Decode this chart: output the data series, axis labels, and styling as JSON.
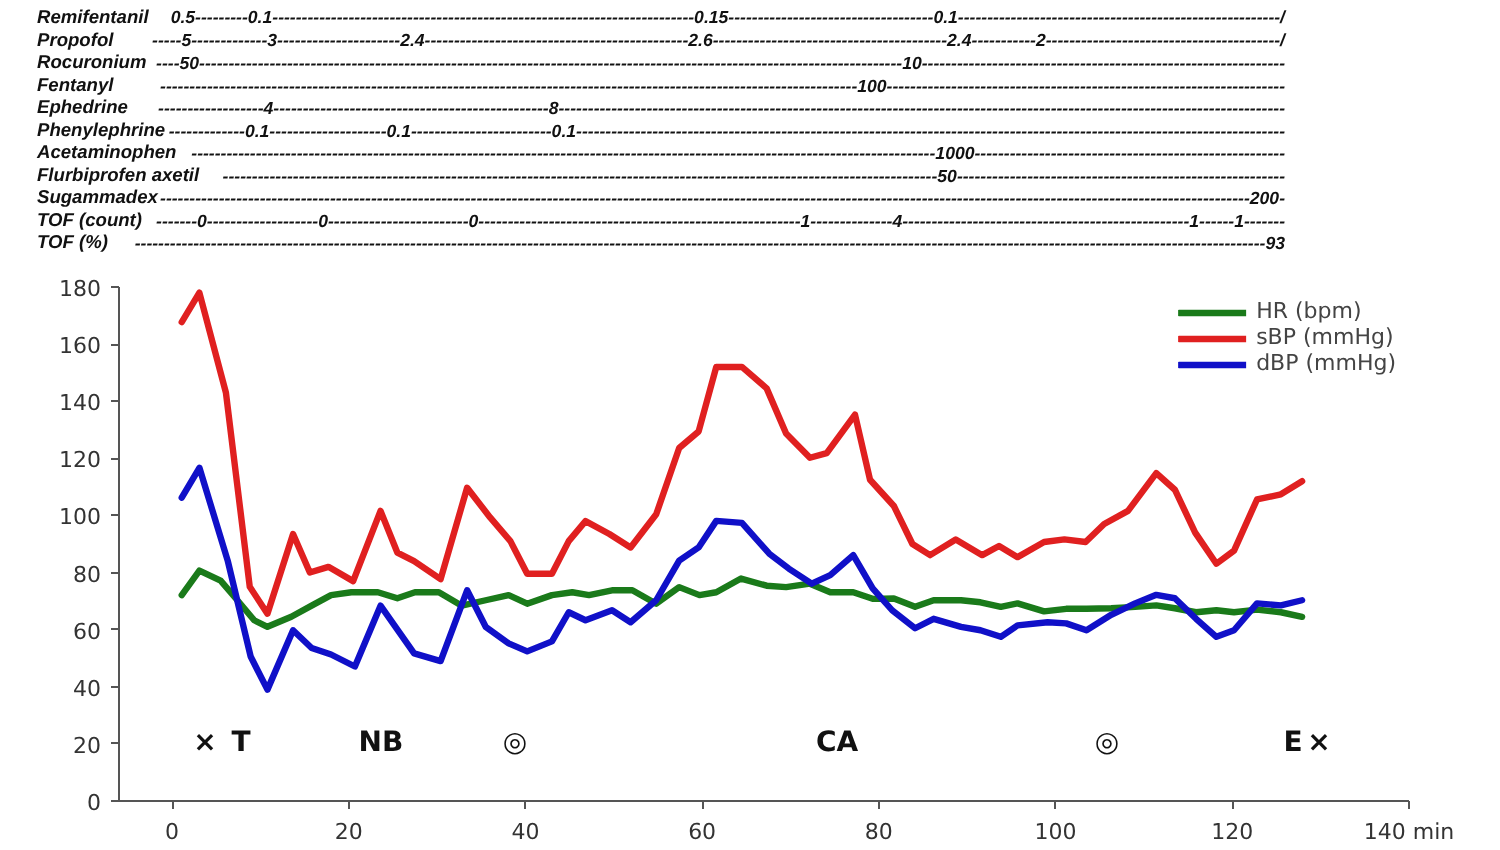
{
  "chart_data": [
    {
      "type": "other",
      "annotations": [
        "Remifentanil",
        "0.5---------0.1------------------------------------------------------------------------0.15-----------------------------------0.1-------------------------------------------------------/",
        "Propofol",
        "-----5-------------3---------------------2.4---------------------------------------------2.6----------------------------------------2.4-----------2----------------------------------------/",
        "Rocuronium",
        "----50------------------------------------------------------------------------------------------------------------------------10--------------------------------------------------------------",
        "Fentanyl",
        "-----------------------------------------------------------------------------------------------------------------------100--------------------------------------------------------------------",
        "Ephedrine",
        "------------------4-----------------------------------------------8----------------------------------------------------------------------------------------------------------------------------",
        "Phenylephrine",
        "-------------0.1--------------------0.1------------------------0.1-------------------------------------------------------------------------------------------------------------------------",
        "Acetaminophen",
        "-------------------------------------------------------------------------------------------------------------------------------1000-----------------------------------------------------",
        "Flurbiprofen axetil",
        "--------------------------------------------------------------------------------------------------------------------------50--------------------------------------------------------",
        "Sugammadex",
        "------------------------------------------------------------------------------------------------------------------------------------------------------------------------------------------200-",
        "TOF (count)",
        "-------0-------------------0------------------------0-------------------------------------------------------1--------------4-------------------------------------------------1------1-------",
        "TOF (%)",
        "-------------------------------------------------------------------------------------------------------------------------------------------------------------------------------------------------93"
      ]
    },
    {
      "type": "line",
      "xlim": [
        -6,
        140
      ],
      "ylim": [
        0,
        180
      ],
      "xticks": [
        0,
        20,
        40,
        60,
        80,
        100,
        120,
        {
          "value": 140,
          "label": "140 min"
        }
      ],
      "yticks": [
        0,
        20,
        40,
        60,
        80,
        100,
        120,
        140,
        160,
        180
      ],
      "legend": "top right",
      "series": [
        {
          "name": "HR (bpm)",
          "color": "#1a7a1a",
          "x": [
            1.1,
            3.1,
            5.5,
            7.4,
            9.3,
            10.8,
            13.5,
            15.8,
            18,
            20.3,
            23.3,
            25.5,
            27.5,
            30.2,
            32.8,
            35.5,
            38.1,
            40.2,
            43,
            45.3,
            47.2,
            49.8,
            52.1,
            54.8,
            57.4,
            59.7,
            61.6,
            64.4,
            67.3,
            69.5,
            72.2,
            74.5,
            77.1,
            79.3,
            81.7,
            84.1,
            86.2,
            89.3,
            91.5,
            93.8,
            95.7,
            98.7,
            101.2,
            103.5,
            106.3,
            109,
            111.4,
            113.5,
            115.9,
            118.2,
            120.2,
            122.8,
            125.5,
            127.9
          ],
          "values": [
            72.1,
            80.7,
            77.2,
            70.3,
            63.3,
            61,
            64.5,
            68.4,
            72.1,
            73.1,
            73.1,
            71,
            73.1,
            73.1,
            68.4,
            70.3,
            72.1,
            69.1,
            72.1,
            73.1,
            72.1,
            73.8,
            73.8,
            69.1,
            74.9,
            72.1,
            73.1,
            77.9,
            75.4,
            74.9,
            76.1,
            73.1,
            73.1,
            70.8,
            70.9,
            68,
            70.3,
            70.3,
            69.6,
            68,
            69.2,
            66.4,
            67.3,
            67.3,
            67.5,
            68,
            68.5,
            67.5,
            66.1,
            66.8,
            66.1,
            67,
            66.1,
            64.5
          ]
        },
        {
          "name": "sBP (mmHg)",
          "color": "#e02020",
          "x": [
            1.1,
            3.1,
            6.1,
            8.8,
            10.8,
            13.7,
            15.6,
            17.7,
            20.5,
            23.6,
            25.5,
            27.4,
            30.4,
            33.4,
            36,
            38.3,
            40.2,
            43,
            44.9,
            46.8,
            49.5,
            51.9,
            54.8,
            57.4,
            59.6,
            61.6,
            64.5,
            67.3,
            69.5,
            72.2,
            74.1,
            77.3,
            79,
            81.7,
            83.8,
            85.8,
            88.7,
            91.7,
            93.6,
            95.7,
            98.7,
            101,
            103.4,
            105.5,
            108.2,
            111.4,
            113.5,
            115.8,
            118.2,
            120.2,
            122.8,
            125.5,
            127.9
          ],
          "values": [
            167.7,
            178,
            143,
            75,
            65.6,
            93.5,
            80,
            82,
            77,
            101.6,
            87,
            84,
            77.7,
            109.7,
            99.3,
            91,
            79.6,
            79.6,
            91,
            98,
            93.5,
            88.8,
            100.4,
            123.6,
            129.4,
            152,
            152,
            144.5,
            128.7,
            120.2,
            121.8,
            135.3,
            112.5,
            103.3,
            90,
            86.1,
            91.6,
            86.1,
            89.3,
            85.4,
            90.7,
            91.6,
            90.7,
            97,
            101.6,
            114.8,
            109,
            94,
            83.1,
            87.7,
            105.6,
            107.4,
            112
          ]
        },
        {
          "name": "dBP (mmHg)",
          "color": "#1010c8",
          "x": [
            1.1,
            3.1,
            6.3,
            8.9,
            10.8,
            13.7,
            15.8,
            18,
            20.7,
            23.6,
            27.4,
            30.4,
            33.4,
            35.5,
            38.1,
            40.2,
            43,
            44.9,
            46.8,
            49.8,
            51.9,
            54.8,
            57.4,
            59.6,
            61.6,
            64.5,
            67.6,
            69.8,
            72.4,
            74.5,
            77.1,
            79.3,
            81.5,
            84.1,
            86.2,
            89.3,
            91.5,
            93.8,
            95.7,
            99.1,
            101.2,
            103.5,
            106.3,
            109,
            111.4,
            113.5,
            115.9,
            118.2,
            120.2,
            122.8,
            125.5,
            127.9
          ],
          "values": [
            106.2,
            116.7,
            84.2,
            50.6,
            39,
            59.8,
            53.6,
            51.3,
            47.1,
            68.4,
            51.7,
            49,
            73.8,
            61,
            55.2,
            52.4,
            55.9,
            66.1,
            63.3,
            66.8,
            62.6,
            70.3,
            84.2,
            88.8,
            98.1,
            97.4,
            86.6,
            81.4,
            76.1,
            79.1,
            86.1,
            74.5,
            66.8,
            60.5,
            63.8,
            61,
            59.8,
            57.5,
            61.5,
            62.6,
            62.2,
            59.8,
            65.2,
            69.2,
            72.2,
            71,
            63.8,
            57.5,
            59.8,
            69.2,
            68.5,
            70.3
          ]
        }
      ],
      "annotations": [
        "×",
        "T",
        "NB",
        "◎",
        "CA",
        "◎",
        "E",
        "×"
      ]
    }
  ]
}
